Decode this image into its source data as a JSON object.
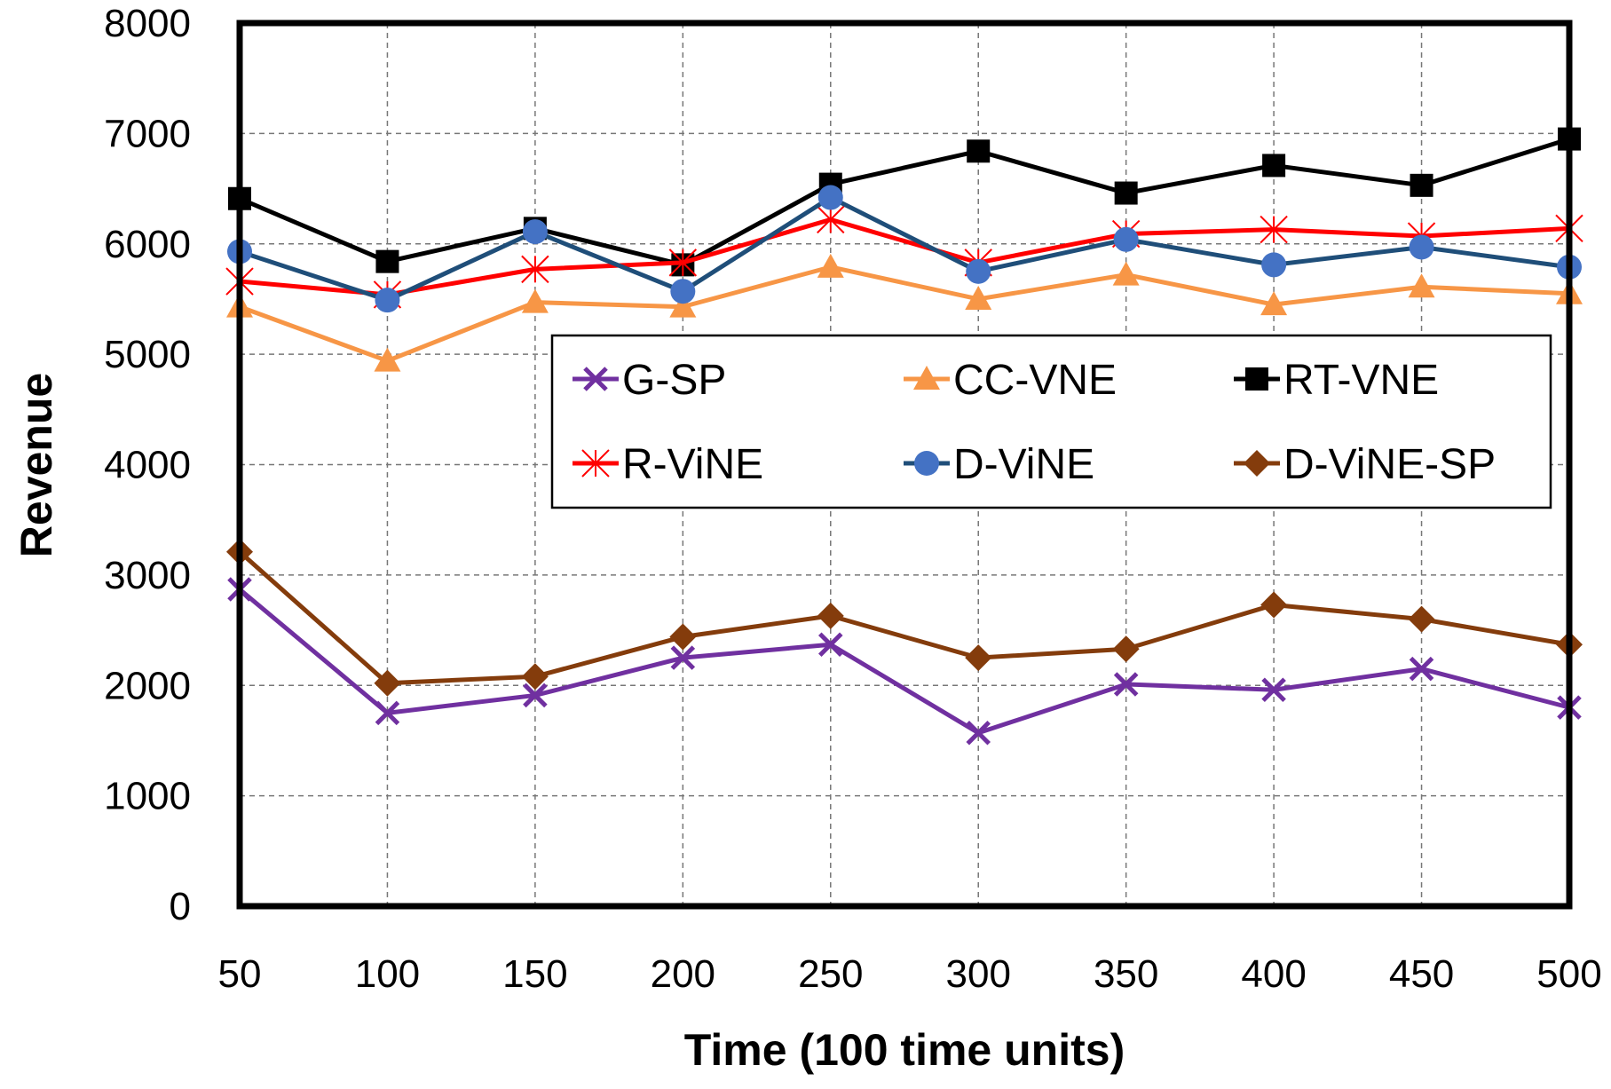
{
  "chart_data": {
    "type": "line",
    "title": "",
    "xlabel": "Time (100 time units)",
    "ylabel": "Revenue",
    "x": [
      50,
      100,
      150,
      200,
      250,
      300,
      350,
      400,
      450,
      500
    ],
    "ylim": [
      0,
      8000
    ],
    "yticks": [
      0,
      1000,
      2000,
      3000,
      4000,
      5000,
      6000,
      7000,
      8000
    ],
    "grid": true,
    "legend_position": "upper-middle, inside plot, two rows of three",
    "series": [
      {
        "name": "G-SP",
        "color": "#7030a0",
        "marker": "x-star",
        "values": [
          2870,
          1750,
          1910,
          2250,
          2370,
          1570,
          2010,
          1960,
          2150,
          1800
        ]
      },
      {
        "name": "CC-VNE",
        "color": "#f79646",
        "marker": "triangle",
        "values": [
          5430,
          4940,
          5470,
          5430,
          5790,
          5500,
          5720,
          5450,
          5610,
          5550
        ]
      },
      {
        "name": "RT-VNE",
        "color": "#000000",
        "marker": "square",
        "values": [
          6410,
          5840,
          6140,
          5810,
          6540,
          6840,
          6460,
          6710,
          6530,
          6950
        ]
      },
      {
        "name": "R-ViNE",
        "color": "#ff0000",
        "marker": "asterisk",
        "values": [
          5660,
          5540,
          5770,
          5830,
          6220,
          5830,
          6090,
          6130,
          6070,
          6140
        ]
      },
      {
        "name": "D-ViNE",
        "color": "#4472c4",
        "line_color": "#1f4e79",
        "marker": "circle",
        "values": [
          5930,
          5490,
          6110,
          5570,
          6420,
          5750,
          6040,
          5810,
          5970,
          5790
        ]
      },
      {
        "name": "D-ViNE-SP",
        "color": "#843c0c",
        "marker": "diamond",
        "values": [
          3210,
          2020,
          2080,
          2440,
          2630,
          2250,
          2330,
          2730,
          2600,
          2370
        ]
      }
    ]
  }
}
